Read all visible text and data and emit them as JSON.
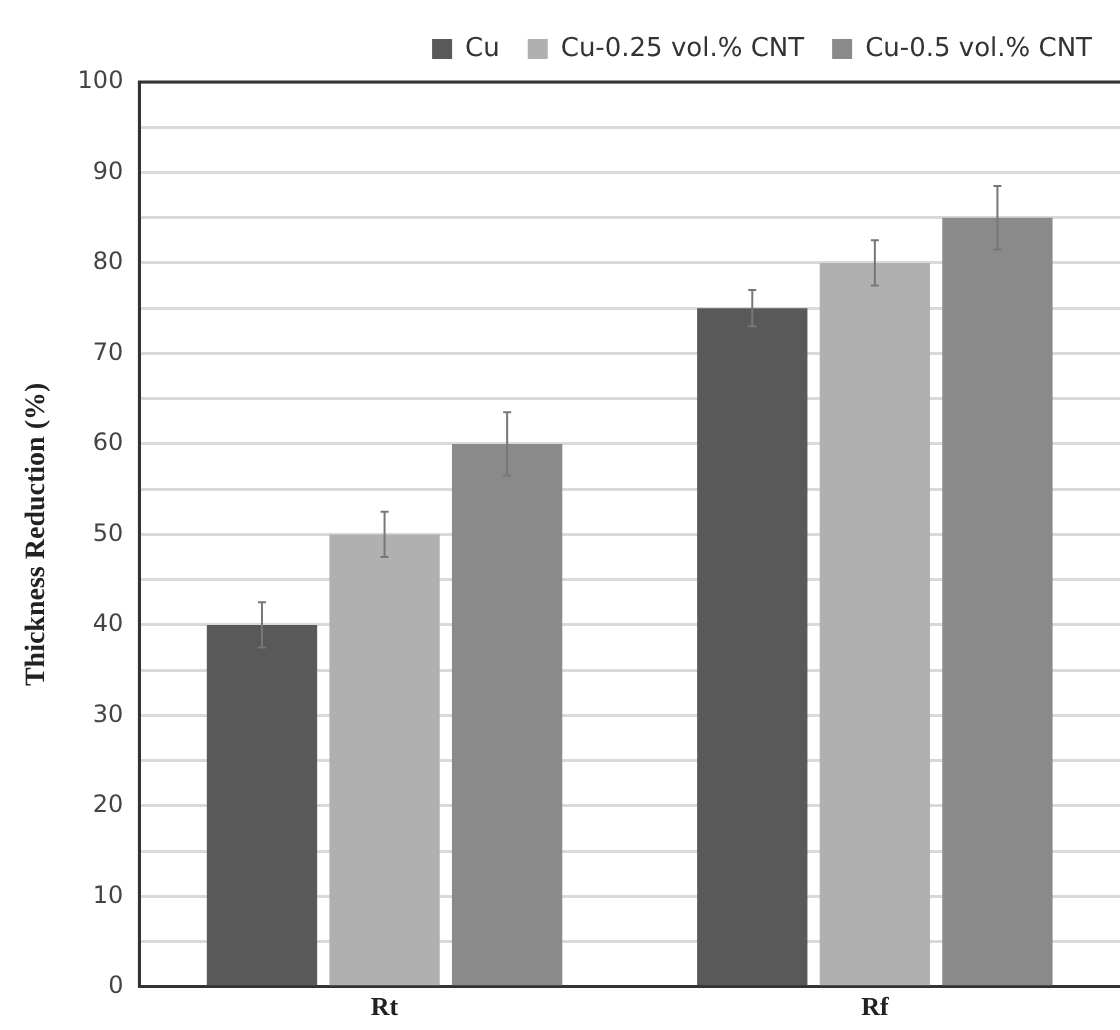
{
  "chart_data": {
    "type": "bar",
    "ylabel": "Thickness Reduction (%)",
    "categories": [
      "Rt",
      "Rf"
    ],
    "series": [
      {
        "name": "Cu",
        "color": "#595959",
        "values": [
          40,
          75
        ],
        "errors": [
          2.5,
          2
        ]
      },
      {
        "name": "Cu-0.25 vol.% CNT",
        "color": "#b0b0b0",
        "values": [
          50,
          80
        ],
        "errors": [
          2.5,
          2.5
        ]
      },
      {
        "name": "Cu-0.5 vol.% CNT",
        "color": "#8a8a8a",
        "values": [
          60,
          85
        ],
        "errors": [
          3.5,
          3.5
        ]
      }
    ],
    "ylim": [
      0,
      100
    ],
    "yticks": [
      0,
      {
        "value": 5,
        "label": null
      },
      10,
      {
        "value": 15,
        "label": null
      },
      20,
      {
        "value": 25,
        "label": null
      },
      30,
      {
        "value": 35,
        "label": null
      },
      40,
      {
        "value": 45,
        "label": null
      },
      50,
      {
        "value": 55,
        "label": null
      },
      60,
      {
        "value": 65,
        "label": null
      },
      70,
      {
        "value": 75,
        "label": null
      },
      80,
      {
        "value": 85,
        "label": null
      },
      90,
      {
        "value": 95,
        "label": null
      },
      100
    ],
    "grid": "y",
    "legend": "top"
  }
}
